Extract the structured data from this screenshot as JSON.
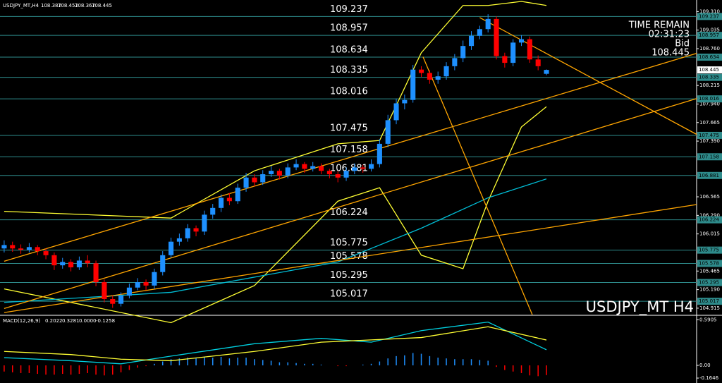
{
  "chart_data": [
    {
      "type": "candlestick",
      "title": "USDJPY_MT,H4",
      "watermark": "USDJPY_MT H4",
      "info": {
        "time_label": "TIME REMAIN",
        "time": "02:31:23",
        "bid_label": "Bid"
      },
      "xlim": [
        -0.5,
        83
      ],
      "ylim": [
        104.82,
        109.46
      ],
      "yticks": [
        {
          "value": 109.31,
          "label": "109.310"
        },
        109.035,
        {
          "value": 108.76,
          "label": "108.760"
        },
        108.215,
        {
          "value": 107.94,
          "label": "107.940"
        },
        107.665,
        {
          "value": 107.39,
          "label": "107.390"
        },
        106.565,
        {
          "value": 106.29,
          "label": "106.290"
        },
        106.015,
        105.465,
        {
          "value": 105.19,
          "label": "105.190"
        },
        104.915
      ],
      "up_color": "#1e90ff",
      "down_color": "#ff0000",
      "candles": [
        [
          105.8,
          105.92,
          105.74,
          105.85
        ],
        [
          105.85,
          105.9,
          105.75,
          105.8
        ],
        [
          105.8,
          105.86,
          105.72,
          105.78
        ],
        [
          105.78,
          105.88,
          105.74,
          105.82
        ],
        [
          105.82,
          105.85,
          105.7,
          105.76
        ],
        [
          105.76,
          105.8,
          105.64,
          105.7
        ],
        [
          105.7,
          105.74,
          105.48,
          105.55
        ],
        [
          105.55,
          105.66,
          105.5,
          105.6
        ],
        [
          105.6,
          105.64,
          105.46,
          105.52
        ],
        [
          105.52,
          105.68,
          105.48,
          105.62
        ],
        [
          105.62,
          105.7,
          105.52,
          105.58
        ],
        [
          105.58,
          105.62,
          105.24,
          105.3
        ],
        [
          105.3,
          105.34,
          105.0,
          105.05
        ],
        [
          105.05,
          105.1,
          104.92,
          104.98
        ],
        [
          104.98,
          105.15,
          104.94,
          105.1
        ],
        [
          105.1,
          105.28,
          105.06,
          105.22
        ],
        [
          105.22,
          105.36,
          105.18,
          105.3
        ],
        [
          105.3,
          105.34,
          105.18,
          105.25
        ],
        [
          105.25,
          105.5,
          105.2,
          105.45
        ],
        [
          105.45,
          105.76,
          105.4,
          105.7
        ],
        [
          105.7,
          105.96,
          105.66,
          105.9
        ],
        [
          105.9,
          106.02,
          105.84,
          105.95
        ],
        [
          105.95,
          106.16,
          105.9,
          106.1
        ],
        [
          106.1,
          106.14,
          105.98,
          106.05
        ],
        [
          106.05,
          106.36,
          106.0,
          106.3
        ],
        [
          106.3,
          106.46,
          106.24,
          106.4
        ],
        [
          106.4,
          106.6,
          106.34,
          106.55
        ],
        [
          106.55,
          106.62,
          106.44,
          106.5
        ],
        [
          106.5,
          106.76,
          106.46,
          106.7
        ],
        [
          106.7,
          106.92,
          106.64,
          106.85
        ],
        [
          106.85,
          106.9,
          106.72,
          106.78
        ],
        [
          106.78,
          106.96,
          106.74,
          106.9
        ],
        [
          106.9,
          107.02,
          106.86,
          106.95
        ],
        [
          106.95,
          106.98,
          106.82,
          106.88
        ],
        [
          106.88,
          107.06,
          106.84,
          107.0
        ],
        [
          107.0,
          107.12,
          106.96,
          107.05
        ],
        [
          107.05,
          107.08,
          106.92,
          106.98
        ],
        [
          106.98,
          107.08,
          106.94,
          107.02
        ],
        [
          107.02,
          107.06,
          106.9,
          106.95
        ],
        [
          106.95,
          106.98,
          106.84,
          106.9
        ],
        [
          106.9,
          106.94,
          106.78,
          106.85
        ],
        [
          106.85,
          107.0,
          106.8,
          106.95
        ],
        [
          106.95,
          107.06,
          106.9,
          107.0
        ],
        [
          107.0,
          107.04,
          106.92,
          106.98
        ],
        [
          106.98,
          107.12,
          106.94,
          107.05
        ],
        [
          107.05,
          107.42,
          107.0,
          107.35
        ],
        [
          107.35,
          107.78,
          107.3,
          107.7
        ],
        [
          107.7,
          108.02,
          107.64,
          107.95
        ],
        [
          107.95,
          108.08,
          107.86,
          108.0
        ],
        [
          108.0,
          108.52,
          107.96,
          108.45
        ],
        [
          108.45,
          108.5,
          108.34,
          108.4
        ],
        [
          108.4,
          108.44,
          108.24,
          108.3
        ],
        [
          108.3,
          108.42,
          108.24,
          108.35
        ],
        [
          108.35,
          108.56,
          108.3,
          108.5
        ],
        [
          108.5,
          108.68,
          108.44,
          108.62
        ],
        [
          108.62,
          108.88,
          108.56,
          108.8
        ],
        [
          108.8,
          109.02,
          108.74,
          108.95
        ],
        [
          108.95,
          109.1,
          108.9,
          109.05
        ],
        [
          109.05,
          109.27,
          109.0,
          109.2
        ],
        [
          109.2,
          109.24,
          108.6,
          108.65
        ],
        [
          108.65,
          108.7,
          108.48,
          108.55
        ],
        [
          108.55,
          108.9,
          108.5,
          108.85
        ],
        [
          108.85,
          108.96,
          108.8,
          108.9
        ],
        [
          108.9,
          108.94,
          108.55,
          108.6
        ],
        [
          108.6,
          108.66,
          108.44,
          108.5
        ],
        [
          108.387,
          108.452,
          108.367,
          108.445
        ]
      ],
      "levels": [
        109.237,
        108.957,
        108.634,
        108.335,
        108.016,
        107.475,
        107.158,
        106.881,
        106.224,
        105.775,
        105.578,
        105.295,
        105.017
      ],
      "level_color": "#2e8b8b",
      "overlays": [
        {
          "color": "#ffff33",
          "x": [
            0,
            10,
            20,
            30,
            40,
            45,
            50,
            55,
            58,
            62,
            65
          ],
          "values": [
            106.35,
            106.3,
            106.25,
            106.95,
            107.35,
            107.4,
            108.7,
            109.4,
            109.4,
            109.46,
            109.4
          ]
        },
        {
          "color": "#ffff33",
          "x": [
            0,
            10,
            20,
            30,
            40,
            45,
            50,
            55,
            58,
            62,
            65
          ],
          "values": [
            105.2,
            104.95,
            104.7,
            105.25,
            106.5,
            106.7,
            105.7,
            105.5,
            106.5,
            107.6,
            107.9
          ]
        },
        {
          "color": "#00bcd4",
          "x": [
            0,
            20,
            40,
            50,
            58,
            65
          ],
          "values": [
            105.0,
            105.15,
            105.6,
            106.1,
            106.55,
            106.83
          ]
        },
        {
          "color": "#ffa500",
          "x": [
            0,
            83
          ],
          "values": [
            104.91,
            108.02
          ]
        },
        {
          "color": "#ffa500",
          "x": [
            0,
            83
          ],
          "values": [
            105.61,
            108.69
          ]
        },
        {
          "color": "#ffa500",
          "x": [
            0,
            83
          ],
          "values": [
            104.85,
            106.45
          ]
        },
        {
          "color": "#ffa500",
          "x": [
            57,
            83
          ],
          "values": [
            109.22,
            107.49
          ]
        },
        {
          "color": "#ffa500",
          "x": [
            50.2,
            63.3
          ],
          "values": [
            108.64,
            104.82
          ]
        }
      ]
    },
    {
      "type": "macd",
      "title": "MACD(12,26,9)",
      "ylim": [
        -0.21,
        0.63
      ],
      "yticks": [
        0.5905,
        {
          "value": 0,
          "label": "0.00"
        },
        -0.1646
      ],
      "zero_readout": {
        "value": 0,
        "label": "0.0000"
      },
      "histogram": {
        "up_color": "#1e90ff",
        "down_color": "#ff0000",
        "values": [
          -0.08,
          -0.09,
          -0.1,
          -0.1,
          -0.11,
          -0.12,
          -0.12,
          -0.11,
          -0.12,
          -0.11,
          -0.1,
          -0.12,
          -0.13,
          -0.12,
          -0.09,
          -0.06,
          -0.03,
          -0.01,
          0.02,
          0.05,
          0.08,
          0.09,
          0.1,
          0.09,
          0.11,
          0.1,
          0.11,
          0.09,
          0.1,
          0.1,
          0.08,
          0.07,
          0.06,
          0.04,
          0.04,
          0.03,
          0.02,
          0.02,
          0.01,
          0.0,
          -0.01,
          -0.01,
          0.0,
          0.01,
          0.02,
          0.05,
          0.09,
          0.12,
          0.13,
          0.16,
          0.15,
          0.12,
          0.1,
          0.09,
          0.08,
          0.08,
          0.08,
          0.07,
          0.06,
          -0.02,
          -0.06,
          -0.08,
          -0.1,
          -0.13,
          -0.14,
          -0.1258
        ]
      },
      "series": [
        {
          "color": "#00d0e0",
          "x": [
            0,
            8,
            14,
            20,
            30,
            38,
            44,
            50,
            58,
            65
          ],
          "values": [
            0.1,
            0.06,
            0.02,
            0.12,
            0.28,
            0.35,
            0.3,
            0.45,
            0.56,
            0.2022
          ]
        },
        {
          "color": "#ffff33",
          "x": [
            0,
            8,
            14,
            20,
            30,
            38,
            44,
            50,
            58,
            65
          ],
          "values": [
            0.18,
            0.14,
            0.08,
            0.06,
            0.18,
            0.3,
            0.33,
            0.36,
            0.5,
            0.3281
          ]
        }
      ]
    }
  ]
}
